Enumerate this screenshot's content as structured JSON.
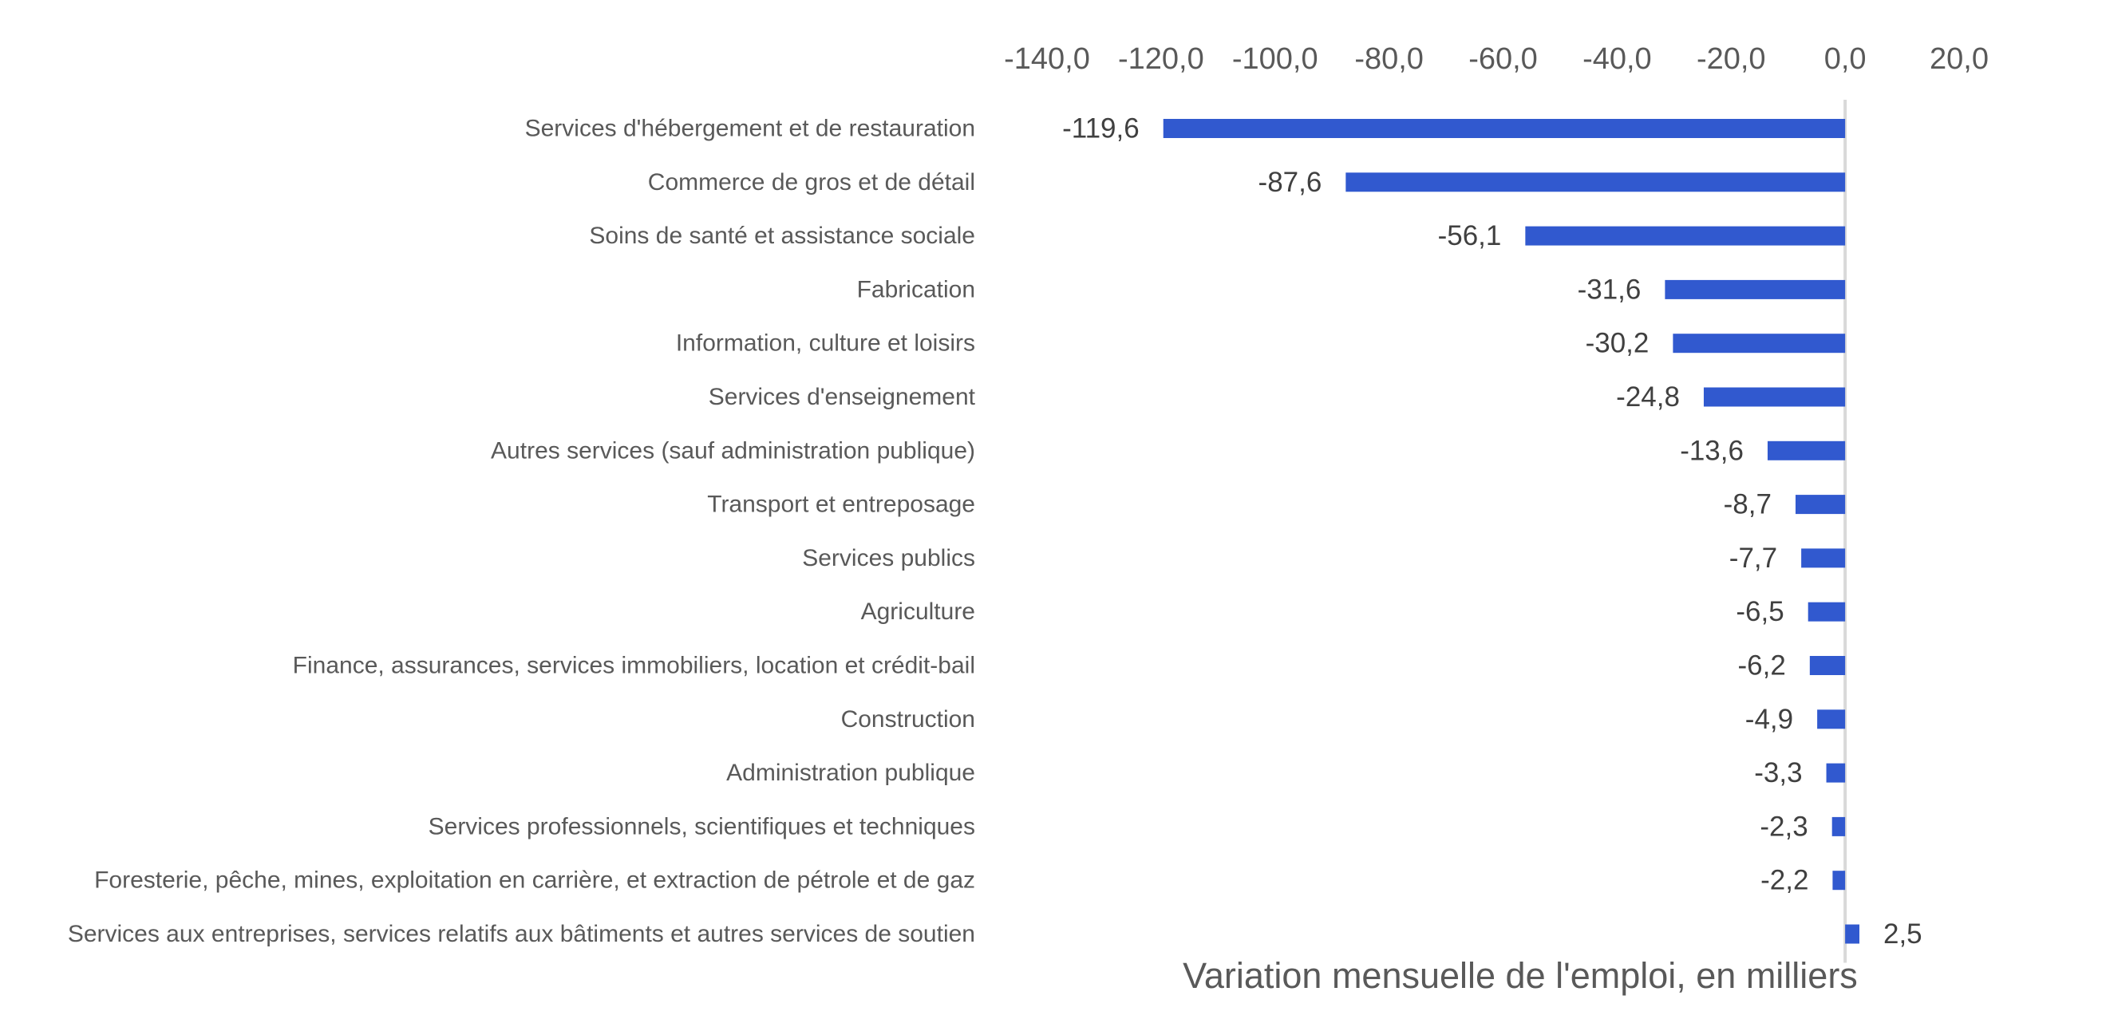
{
  "chart_data": {
    "type": "bar",
    "orientation": "horizontal",
    "categories": [
      "Services d'hébergement et de restauration",
      "Commerce de gros et de détail",
      "Soins de santé et assistance sociale",
      "Fabrication",
      "Information, culture et loisirs",
      "Services d'enseignement",
      "Autres services (sauf administration publique)",
      "Transport et entreposage",
      "Services publics",
      "Agriculture",
      "Finance, assurances, services immobiliers, location et crédit-bail",
      "Construction",
      "Administration publique",
      "Services professionnels, scientifiques et techniques",
      "Foresterie, pêche, mines, exploitation en carrière, et extraction de pétrole et de gaz",
      "Services aux entreprises, services relatifs aux bâtiments et autres services de soutien"
    ],
    "values": [
      -119.6,
      -87.6,
      -56.1,
      -31.6,
      -30.2,
      -24.8,
      -13.6,
      -8.7,
      -7.7,
      -6.5,
      -6.2,
      -4.9,
      -3.3,
      -2.3,
      -2.2,
      2.5
    ],
    "value_labels": [
      "-119,6",
      "-87,6",
      "-56,1",
      "-31,6",
      "-30,2",
      "-24,8",
      "-13,6",
      "-8,7",
      "-7,7",
      "-6,5",
      "-6,2",
      "-4,9",
      "-3,3",
      "-2,3",
      "-2,2",
      "2,5"
    ],
    "xlim": [
      -140,
      20
    ],
    "x_ticks": [
      -140,
      -120,
      -100,
      -80,
      -60,
      -40,
      -20,
      0,
      20
    ],
    "x_tick_labels": [
      "-140,0",
      "-120,0",
      "-100,0",
      "-80,0",
      "-60,0",
      "-40,0",
      "-20,0",
      "0,0",
      "20,0"
    ],
    "x_axis_position": "top",
    "xlabel": "Variation mensuelle de l'emploi, en milliers",
    "title": "",
    "grid": false,
    "legend": "none",
    "bar_color": "#3159CF",
    "zero_line_color": "#D9D9D9"
  }
}
